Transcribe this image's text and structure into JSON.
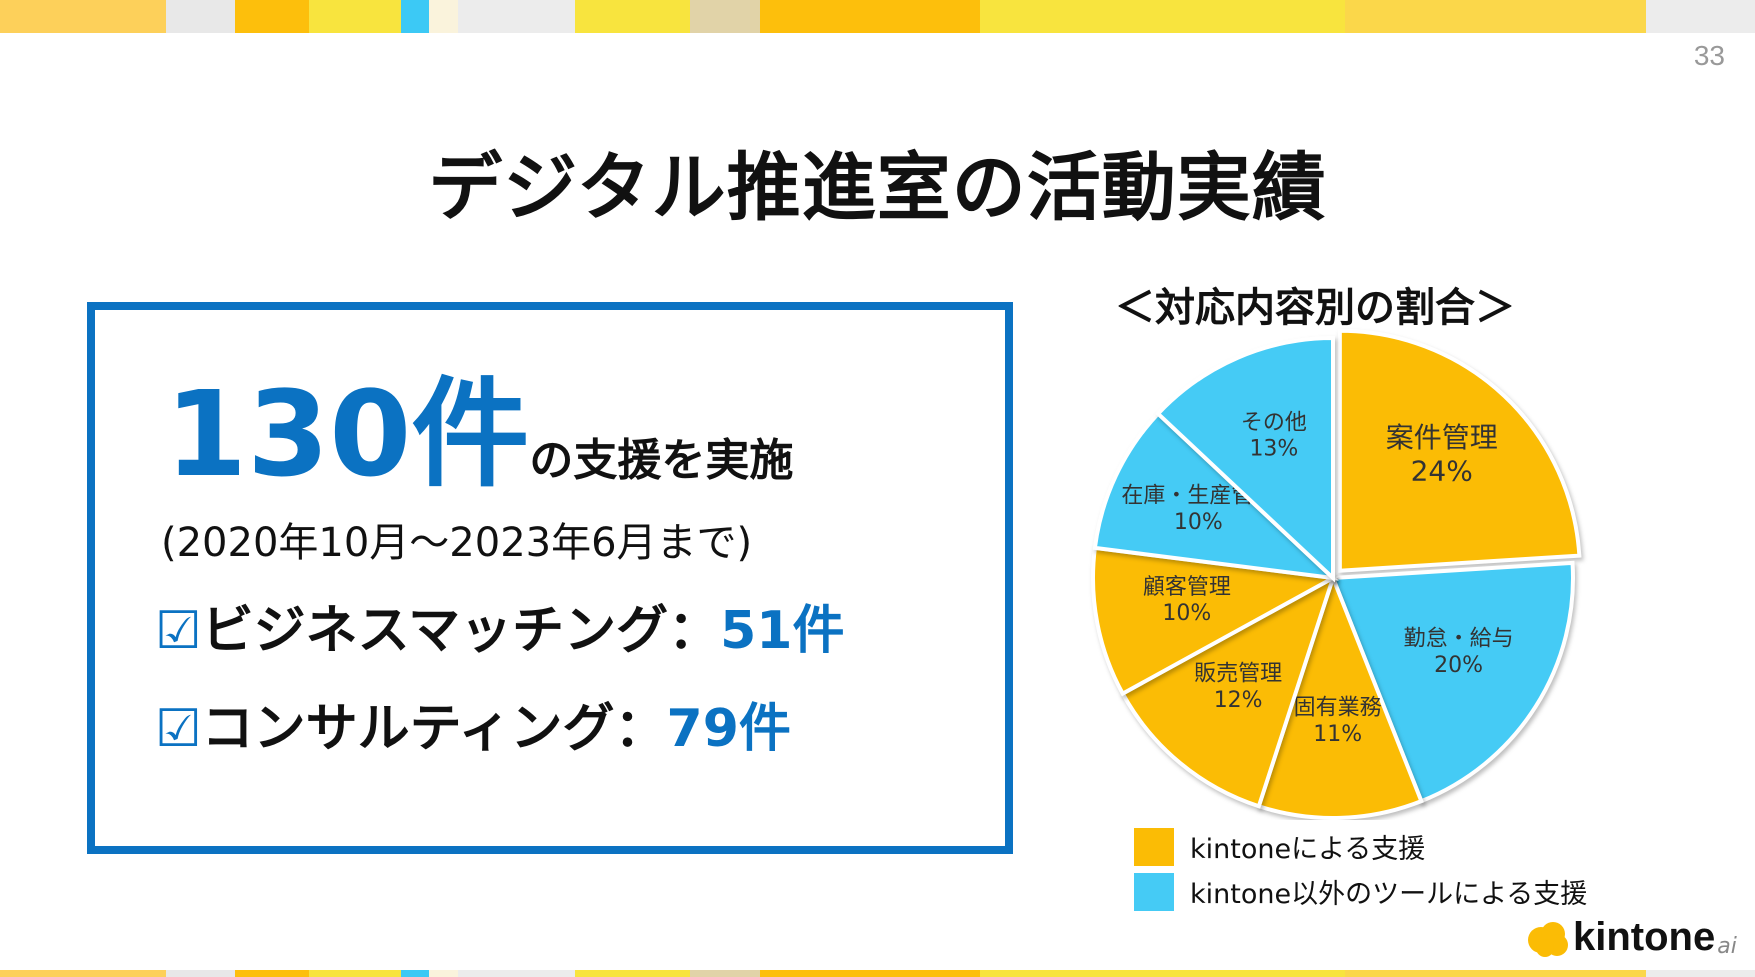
{
  "page_number": "33",
  "title": "デジタル推進室の活動実績",
  "summary": {
    "count": "130件",
    "count_suffix": "の支援を実施",
    "period": "(2020年10月～2023年6月まで)",
    "checkbox_glyph": "☑",
    "items": [
      {
        "label": "ビジネスマッチング：",
        "count": "51件"
      },
      {
        "label": "コンサルティング：",
        "count": "79件"
      }
    ]
  },
  "chart_data": {
    "type": "pie",
    "title": "＜対応内容別の割合＞",
    "slices": [
      {
        "label": "案件管理",
        "value": 24,
        "display": "24%",
        "group": "kintone"
      },
      {
        "label": "勤怠・給与",
        "value": 20,
        "display": "20%",
        "group": "other"
      },
      {
        "label": "固有業務",
        "value": 11,
        "display": "11%",
        "group": "kintone"
      },
      {
        "label": "販売管理",
        "value": 12,
        "display": "12%",
        "group": "kintone"
      },
      {
        "label": "顧客管理",
        "value": 10,
        "display": "10%",
        "group": "kintone"
      },
      {
        "label": "在庫・生産管理",
        "value": 10,
        "display": "10%",
        "group": "other"
      },
      {
        "label": "その他",
        "value": 13,
        "display": "13%",
        "group": "other"
      }
    ],
    "legend": [
      {
        "key": "kintone",
        "label": "kintoneによる支援",
        "color": "#fbbc05"
      },
      {
        "key": "other",
        "label": "kintone以外のツールによる支援",
        "color": "#45cbf5"
      }
    ]
  },
  "logo": {
    "text": "kintone",
    "suffix": "ai"
  },
  "colors": {
    "accent_blue": "#0b72c2",
    "stripes": [
      "#fdd05a",
      "#e8e8e8",
      "#fdbf0c",
      "#f8e43e",
      "#3cc9f5",
      "#faf3dc",
      "#ececec",
      "#f8e43e",
      "#e1d3a8",
      "#fdbf0c",
      "#f8e43e",
      "#fbd74a",
      "#ececec"
    ]
  }
}
